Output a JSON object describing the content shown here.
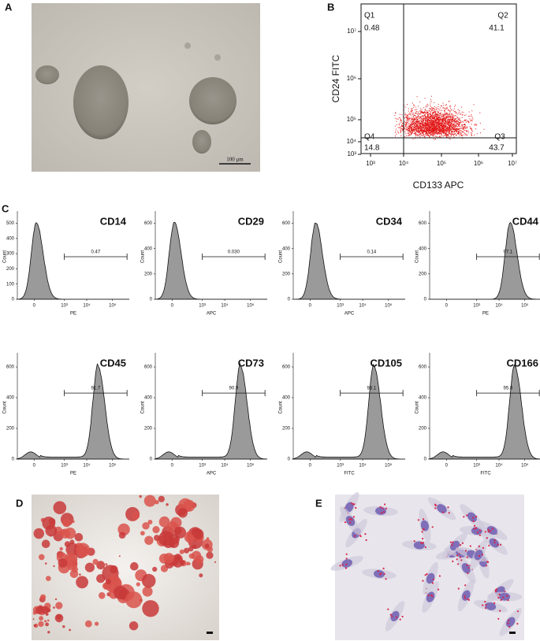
{
  "panels": {
    "A": {
      "label": "A",
      "scale_bar": "100 μm"
    },
    "B": {
      "label": "B",
      "x_label": "CD133 APC",
      "y_label": "CD24 FITC",
      "quadrants": [
        {
          "name": "Q1",
          "value": 0.48
        },
        {
          "name": "Q2",
          "value": 41.1
        },
        {
          "name": "Q4",
          "value": 14.8
        },
        {
          "name": "Q3",
          "value": 43.7
        }
      ],
      "xticks": [
        "10³",
        "10⁴",
        "10⁵",
        "10⁶",
        "10⁷"
      ],
      "yticks": [
        "10⁷",
        "10⁶",
        "10⁵",
        "10⁴",
        "10³"
      ]
    },
    "C": {
      "label": "C",
      "histograms": [
        {
          "marker": "CD14",
          "channel": "PE",
          "gate": "0.47",
          "y_label": "Count",
          "yticks": [
            0,
            100,
            200,
            300,
            400,
            500
          ],
          "xticks": [
            "0",
            "10³",
            "10⁴",
            "10⁵"
          ]
        },
        {
          "marker": "CD29",
          "channel": "APC",
          "gate": "0.030",
          "y_label": "Count",
          "yticks": [
            0,
            200,
            400,
            600
          ],
          "xticks": [
            "0",
            "10³",
            "10⁴",
            "10⁵"
          ]
        },
        {
          "marker": "CD34",
          "channel": "APC",
          "gate": "0.14",
          "y_label": "Count",
          "yticks": [
            0,
            200,
            400,
            600
          ],
          "xticks": [
            "0",
            "10³",
            "10⁴",
            "10⁵"
          ]
        },
        {
          "marker": "CD44",
          "channel": "PE",
          "gate": "97.1",
          "y_label": "Count",
          "yticks": [
            0,
            200,
            400,
            600
          ],
          "xticks": [
            "0",
            "10³",
            "10⁴",
            "10⁵"
          ]
        },
        {
          "marker": "CD45",
          "channel": "PE",
          "gate": "91.7",
          "y_label": "Count",
          "yticks": [
            0,
            200,
            400,
            600
          ],
          "xticks": [
            "0",
            "10³",
            "10⁴",
            "10⁵"
          ]
        },
        {
          "marker": "CD73",
          "channel": "APC",
          "gate": "90.9",
          "y_label": "Count",
          "yticks": [
            0,
            200,
            400,
            600
          ],
          "xticks": [
            "0",
            "10³",
            "10⁴",
            "10⁵"
          ]
        },
        {
          "marker": "CD105",
          "channel": "FITC",
          "gate": "93.1",
          "y_label": "Count",
          "yticks": [
            0,
            200,
            400,
            600
          ],
          "xticks": [
            "0",
            "10³",
            "10⁴",
            "10⁵"
          ]
        },
        {
          "marker": "CD166",
          "channel": "FITC",
          "gate": "95.8",
          "y_label": "Count",
          "yticks": [
            0,
            200,
            400,
            600
          ],
          "xticks": [
            "0",
            "10³",
            "10⁴",
            "10⁵"
          ]
        }
      ]
    },
    "D": {
      "label": "D"
    },
    "E": {
      "label": "E"
    }
  }
}
